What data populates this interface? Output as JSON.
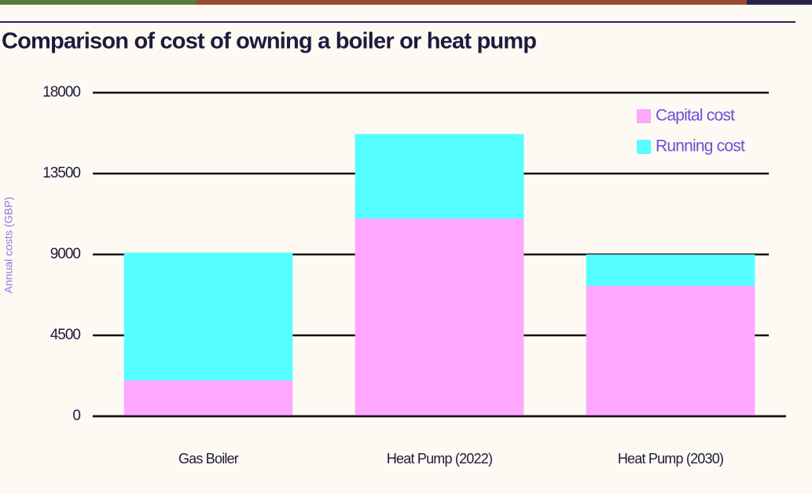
{
  "chart_data": {
    "type": "stacked-bar",
    "title": "Comparison of cost of owning a boiler or heat pump",
    "y_label": "Annual costs (GBP)",
    "categories": [
      "Gas Boiler",
      "Heat Pump (2022)",
      "Heat Pump (2030)"
    ],
    "series": [
      {
        "name": "Capital cost",
        "color": "#ffa6ff",
        "values": [
          2000,
          11000,
          7250
        ]
      },
      {
        "name": "Running cost",
        "color": "#55ffff",
        "values": [
          7100,
          4700,
          1750
        ]
      }
    ],
    "ylim": [
      0,
      18000
    ],
    "yticks": [
      0,
      4500,
      9000,
      13500,
      18000
    ],
    "grid": true,
    "legend": "top-right"
  }
}
